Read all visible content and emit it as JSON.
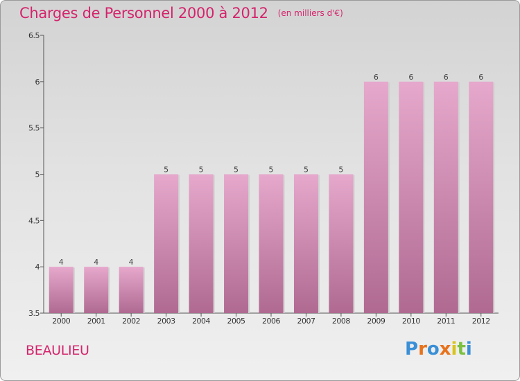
{
  "header": {
    "title": "Charges de Personnel 2000 à 2012",
    "subtitle": "(en milliers d'€)"
  },
  "footer": {
    "commune": "BEAULIEU",
    "brand": "Proxiti"
  },
  "colors": {
    "title": "#d4246c",
    "bar_top": "#e6a8cc",
    "bar_bottom": "#b06a92",
    "brand_letters": [
      "#3a8fd6",
      "#e8721c",
      "#3a8fd6",
      "#e8721c",
      "#d9c21a",
      "#7cc040",
      "#3a8fd6"
    ]
  },
  "chart_data": {
    "type": "bar",
    "title": "Charges de Personnel 2000 à 2012",
    "subtitle": "(en milliers d'€)",
    "categories": [
      "2000",
      "2001",
      "2002",
      "2003",
      "2004",
      "2005",
      "2006",
      "2007",
      "2008",
      "2009",
      "2010",
      "2011",
      "2012"
    ],
    "values": [
      4,
      4,
      4,
      5,
      5,
      5,
      5,
      5,
      5,
      6,
      6,
      6,
      6
    ],
    "data_labels": [
      "4",
      "4",
      "4",
      "5",
      "5",
      "5",
      "5",
      "5",
      "5",
      "6",
      "6",
      "6",
      "6"
    ],
    "ylim": [
      3.5,
      6.5
    ],
    "yticks": [
      3.5,
      4,
      4.5,
      5,
      5.5,
      6,
      6.5
    ],
    "ytick_labels": [
      "3.5",
      "4",
      "4.5",
      "5",
      "5.5",
      "6",
      "6.5"
    ],
    "xlabel": "",
    "ylabel": "",
    "grid": false
  }
}
